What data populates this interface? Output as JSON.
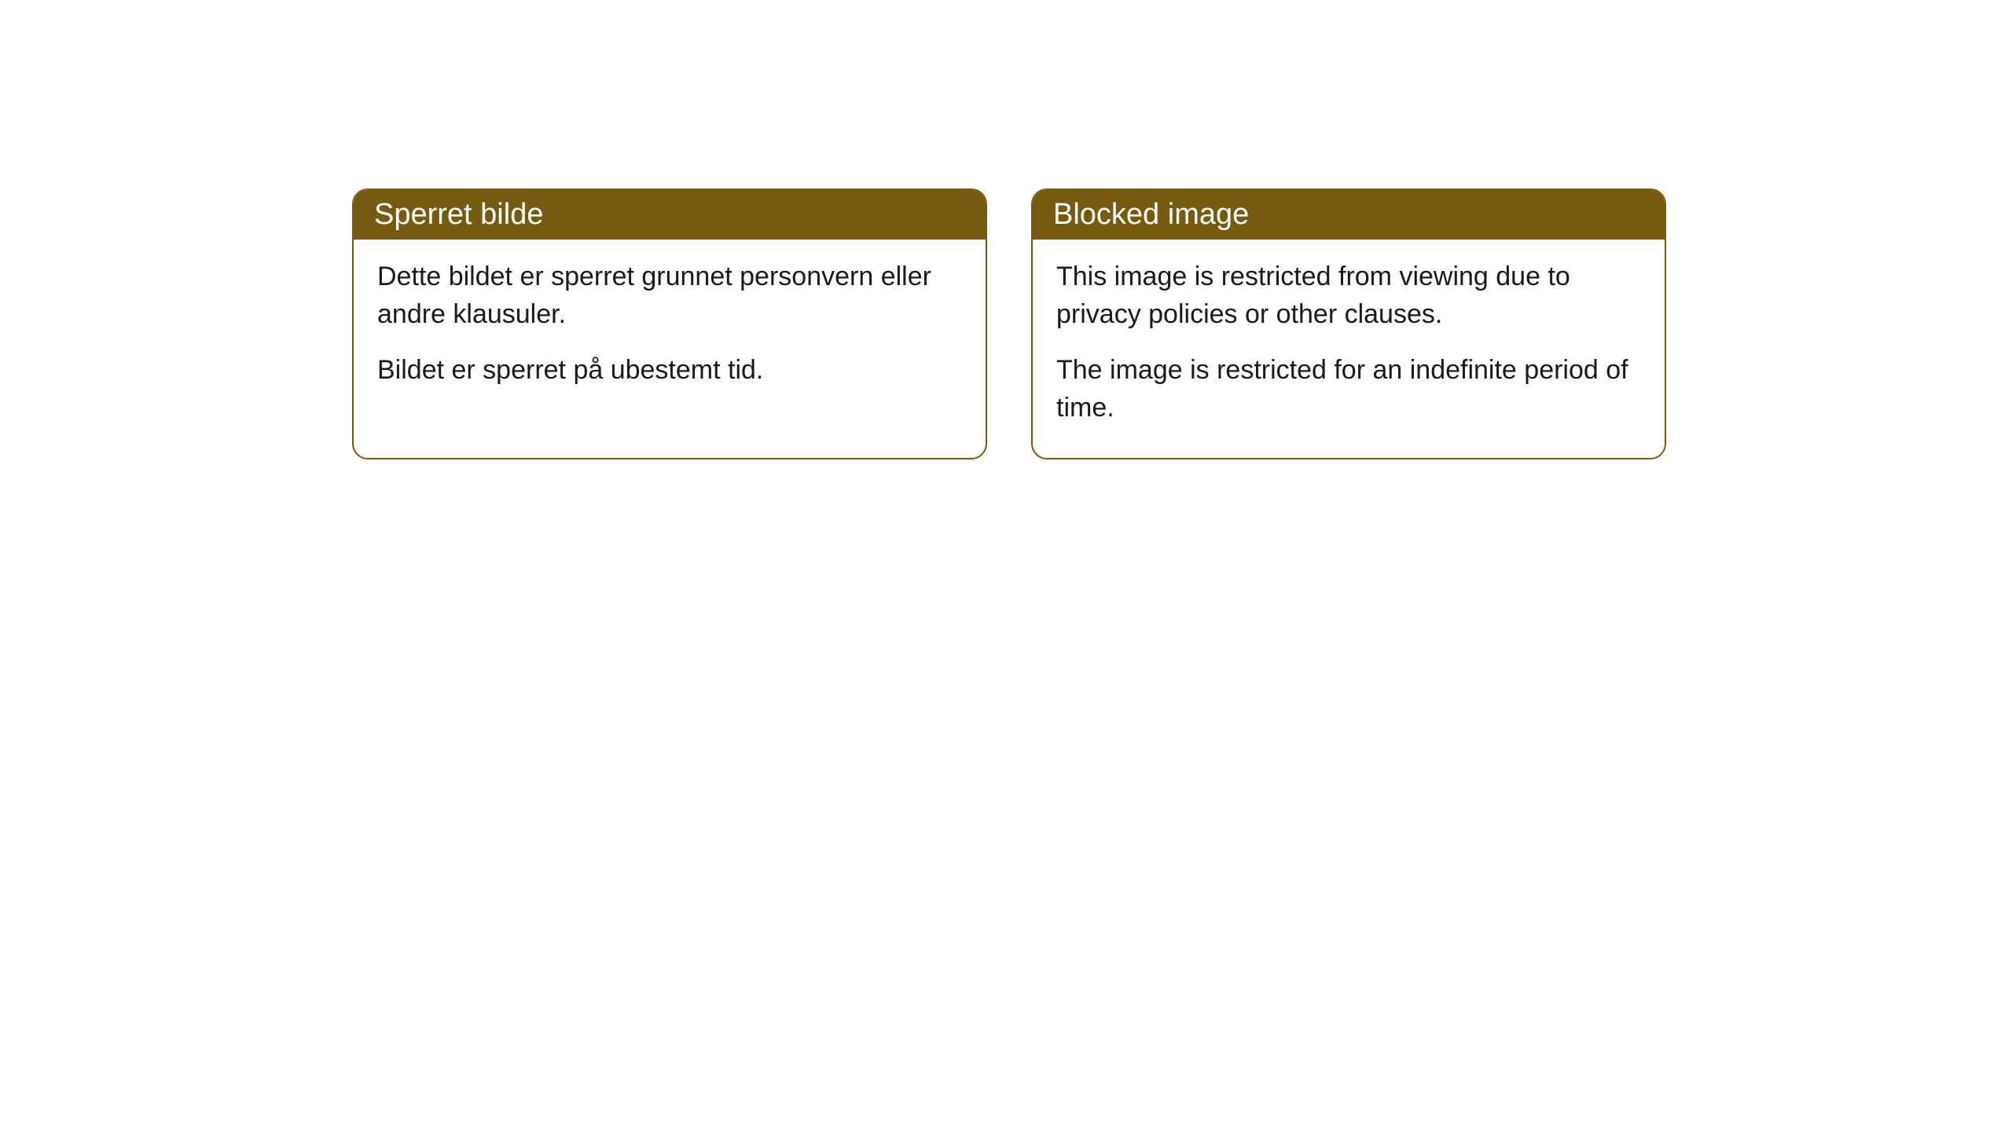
{
  "cards": [
    {
      "title": "Sperret bilde",
      "paragraph1": "Dette bildet er sperret grunnet personvern eller andre klausuler.",
      "paragraph2": "Bildet er sperret på ubestemt tid."
    },
    {
      "title": "Blocked image",
      "paragraph1": "This image is restricted from viewing due to privacy policies or other clauses.",
      "paragraph2": "The image is restricted for an indefinite period of time."
    }
  ],
  "styling": {
    "header_background": "#765a10",
    "header_text_color": "#ffffff",
    "border_color": "#765a10",
    "border_radius": 20,
    "card_background": "#ffffff",
    "body_text_color": "#1a1a1a",
    "header_fontsize": 38,
    "body_fontsize": 34
  }
}
